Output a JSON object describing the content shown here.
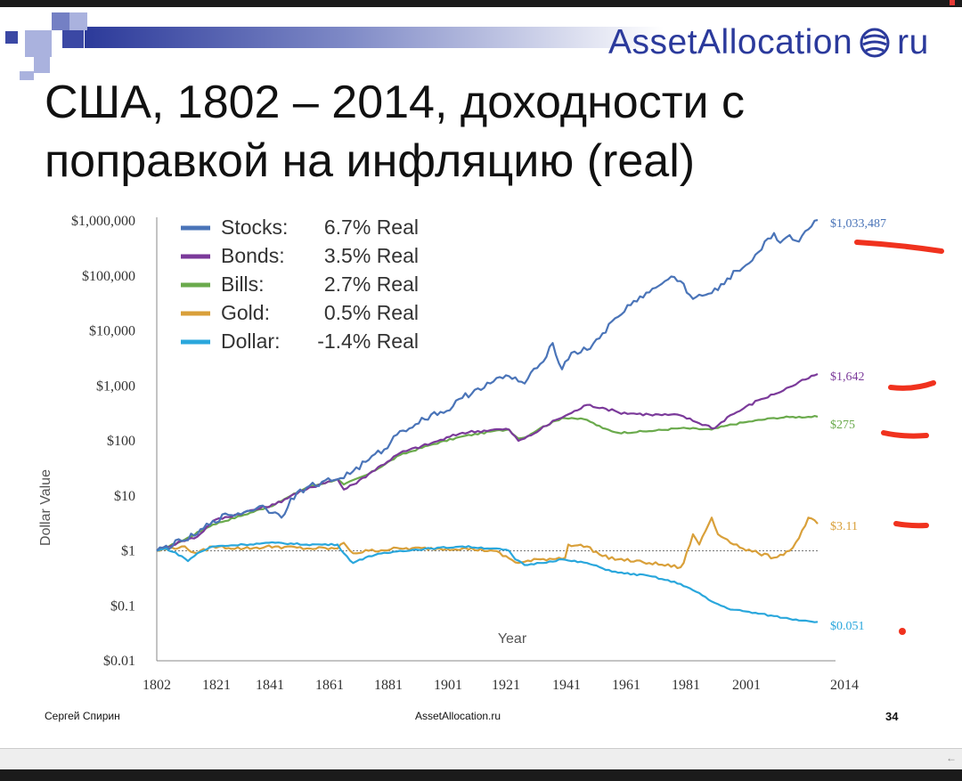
{
  "slide": {
    "logo_text": "AssetAllocation",
    "logo_suffix": "ru",
    "title_line1": "США, 1802 – 2014, доходности с",
    "title_line2": "поправкой на инфляцию (real)",
    "footer_author": "Сергей Спирин",
    "footer_site": "AssetAllocation.ru",
    "page_number": "34"
  },
  "colors": {
    "stocks": "#4a74b8",
    "bonds": "#7b3a9a",
    "bills": "#6aaa4c",
    "gold": "#d9a03a",
    "dollar": "#2aa7dc",
    "annotation": "#f0321e",
    "brand": "#2b3a9c"
  },
  "chart_data": {
    "type": "line",
    "xlabel": "Year",
    "ylabel": "Dollar Value",
    "yscale": "log",
    "ylim": [
      0.01,
      1000000
    ],
    "xlim": [
      1802,
      2014
    ],
    "x_ticks": [
      "1802",
      "1821",
      "1841",
      "1861",
      "1881",
      "1901",
      "1921",
      "1941",
      "1961",
      "1981",
      "2001",
      "2014"
    ],
    "y_ticks": [
      {
        "value": 1000000,
        "label": "$1,000,000"
      },
      {
        "value": 100000,
        "label": "$100,000"
      },
      {
        "value": 10000,
        "label": "$10,000"
      },
      {
        "value": 1000,
        "label": "$1,000"
      },
      {
        "value": 100,
        "label": "$100"
      },
      {
        "value": 10,
        "label": "$10"
      },
      {
        "value": 1,
        "label": "$1"
      },
      {
        "value": 0.1,
        "label": "$0.1"
      },
      {
        "value": 0.01,
        "label": "$0.01"
      }
    ],
    "reference_line": 1,
    "legend_position": "top-left",
    "series": [
      {
        "name": "Stocks:",
        "rate": "6.7% Real",
        "color_key": "stocks",
        "end_label": "$1,033,487",
        "points": [
          [
            1802,
            1
          ],
          [
            1810,
            1.5
          ],
          [
            1815,
            2
          ],
          [
            1820,
            3.5
          ],
          [
            1825,
            4.5
          ],
          [
            1830,
            5
          ],
          [
            1835,
            6.5
          ],
          [
            1840,
            5
          ],
          [
            1842,
            4
          ],
          [
            1845,
            9
          ],
          [
            1850,
            14
          ],
          [
            1855,
            18
          ],
          [
            1860,
            20
          ],
          [
            1865,
            28
          ],
          [
            1870,
            45
          ],
          [
            1875,
            70
          ],
          [
            1880,
            150
          ],
          [
            1885,
            200
          ],
          [
            1890,
            300
          ],
          [
            1895,
            350
          ],
          [
            1900,
            600
          ],
          [
            1905,
            900
          ],
          [
            1910,
            1200
          ],
          [
            1915,
            1500
          ],
          [
            1920,
            1100
          ],
          [
            1925,
            2500
          ],
          [
            1929,
            6000
          ],
          [
            1932,
            2000
          ],
          [
            1935,
            4000
          ],
          [
            1940,
            4500
          ],
          [
            1945,
            9000
          ],
          [
            1950,
            18000
          ],
          [
            1955,
            35000
          ],
          [
            1960,
            50000
          ],
          [
            1965,
            80000
          ],
          [
            1968,
            95000
          ],
          [
            1970,
            80000
          ],
          [
            1974,
            38000
          ],
          [
            1978,
            45000
          ],
          [
            1982,
            55000
          ],
          [
            1985,
            90000
          ],
          [
            1990,
            140000
          ],
          [
            1995,
            270000
          ],
          [
            2000,
            600000
          ],
          [
            2002,
            400000
          ],
          [
            2005,
            550000
          ],
          [
            2008,
            420000
          ],
          [
            2010,
            650000
          ],
          [
            2014,
            1033487
          ]
        ]
      },
      {
        "name": "Bonds:",
        "rate": "3.5% Real",
        "color_key": "bonds",
        "end_label": "$1,642",
        "points": [
          [
            1802,
            1
          ],
          [
            1810,
            1.5
          ],
          [
            1815,
            1.8
          ],
          [
            1820,
            3.5
          ],
          [
            1830,
            5
          ],
          [
            1840,
            7
          ],
          [
            1845,
            10
          ],
          [
            1850,
            13
          ],
          [
            1855,
            17
          ],
          [
            1860,
            20
          ],
          [
            1862,
            13
          ],
          [
            1865,
            16
          ],
          [
            1870,
            25
          ],
          [
            1880,
            60
          ],
          [
            1890,
            90
          ],
          [
            1900,
            140
          ],
          [
            1910,
            160
          ],
          [
            1915,
            160
          ],
          [
            1918,
            100
          ],
          [
            1920,
            110
          ],
          [
            1925,
            160
          ],
          [
            1930,
            240
          ],
          [
            1935,
            320
          ],
          [
            1940,
            450
          ],
          [
            1945,
            400
          ],
          [
            1950,
            330
          ],
          [
            1960,
            300
          ],
          [
            1970,
            290
          ],
          [
            1975,
            220
          ],
          [
            1981,
            170
          ],
          [
            1985,
            270
          ],
          [
            1990,
            380
          ],
          [
            1995,
            550
          ],
          [
            2000,
            700
          ],
          [
            2005,
            950
          ],
          [
            2010,
            1300
          ],
          [
            2014,
            1642
          ]
        ]
      },
      {
        "name": "Bills:",
        "rate": "2.7% Real",
        "color_key": "bills",
        "end_label": "$275",
        "points": [
          [
            1802,
            1
          ],
          [
            1810,
            1.5
          ],
          [
            1820,
            3
          ],
          [
            1830,
            4.5
          ],
          [
            1840,
            7
          ],
          [
            1845,
            10
          ],
          [
            1850,
            14
          ],
          [
            1860,
            20
          ],
          [
            1862,
            16
          ],
          [
            1870,
            25
          ],
          [
            1880,
            55
          ],
          [
            1890,
            85
          ],
          [
            1900,
            120
          ],
          [
            1910,
            150
          ],
          [
            1915,
            160
          ],
          [
            1918,
            110
          ],
          [
            1920,
            115
          ],
          [
            1925,
            170
          ],
          [
            1932,
            260
          ],
          [
            1935,
            260
          ],
          [
            1940,
            240
          ],
          [
            1945,
            170
          ],
          [
            1950,
            140
          ],
          [
            1960,
            150
          ],
          [
            1970,
            170
          ],
          [
            1980,
            160
          ],
          [
            1985,
            190
          ],
          [
            1990,
            215
          ],
          [
            2000,
            260
          ],
          [
            2005,
            270
          ],
          [
            2014,
            275
          ]
        ]
      },
      {
        "name": "Gold:",
        "rate": "0.5% Real",
        "color_key": "gold",
        "end_label": "$3.11",
        "points": [
          [
            1802,
            1
          ],
          [
            1810,
            1.2
          ],
          [
            1815,
            0.9
          ],
          [
            1820,
            1.2
          ],
          [
            1830,
            1.1
          ],
          [
            1840,
            1.2
          ],
          [
            1850,
            1.1
          ],
          [
            1860,
            1.1
          ],
          [
            1862,
            1.4
          ],
          [
            1865,
            0.9
          ],
          [
            1870,
            1.0
          ],
          [
            1880,
            1.1
          ],
          [
            1900,
            1.1
          ],
          [
            1910,
            1.0
          ],
          [
            1918,
            0.6
          ],
          [
            1925,
            0.7
          ],
          [
            1933,
            0.75
          ],
          [
            1934,
            1.3
          ],
          [
            1940,
            1.2
          ],
          [
            1945,
            0.8
          ],
          [
            1950,
            0.7
          ],
          [
            1960,
            0.6
          ],
          [
            1970,
            0.5
          ],
          [
            1971,
            0.6
          ],
          [
            1974,
            2.0
          ],
          [
            1976,
            1.3
          ],
          [
            1980,
            4.0
          ],
          [
            1982,
            2.0
          ],
          [
            1985,
            1.6
          ],
          [
            1990,
            1.1
          ],
          [
            1995,
            0.9
          ],
          [
            2000,
            0.75
          ],
          [
            2005,
            1.0
          ],
          [
            2008,
            1.7
          ],
          [
            2011,
            4.0
          ],
          [
            2014,
            3.11
          ]
        ]
      },
      {
        "name": "Dollar:",
        "rate": "-1.4% Real",
        "color_key": "dollar",
        "end_label": "$0.051",
        "points": [
          [
            1802,
            1
          ],
          [
            1805,
            1.1
          ],
          [
            1810,
            0.8
          ],
          [
            1812,
            0.65
          ],
          [
            1815,
            0.9
          ],
          [
            1820,
            1.2
          ],
          [
            1830,
            1.3
          ],
          [
            1840,
            1.4
          ],
          [
            1850,
            1.3
          ],
          [
            1860,
            1.3
          ],
          [
            1862,
            0.9
          ],
          [
            1865,
            0.6
          ],
          [
            1870,
            0.8
          ],
          [
            1880,
            1.0
          ],
          [
            1890,
            1.1
          ],
          [
            1900,
            1.2
          ],
          [
            1910,
            1.1
          ],
          [
            1915,
            1.0
          ],
          [
            1917,
            0.7
          ],
          [
            1920,
            0.55
          ],
          [
            1925,
            0.6
          ],
          [
            1932,
            0.7
          ],
          [
            1935,
            0.65
          ],
          [
            1940,
            0.6
          ],
          [
            1945,
            0.48
          ],
          [
            1950,
            0.4
          ],
          [
            1960,
            0.35
          ],
          [
            1970,
            0.25
          ],
          [
            1975,
            0.18
          ],
          [
            1980,
            0.12
          ],
          [
            1985,
            0.09
          ],
          [
            1990,
            0.08
          ],
          [
            2000,
            0.065
          ],
          [
            2005,
            0.058
          ],
          [
            2010,
            0.054
          ],
          [
            2014,
            0.051
          ]
        ]
      }
    ]
  }
}
